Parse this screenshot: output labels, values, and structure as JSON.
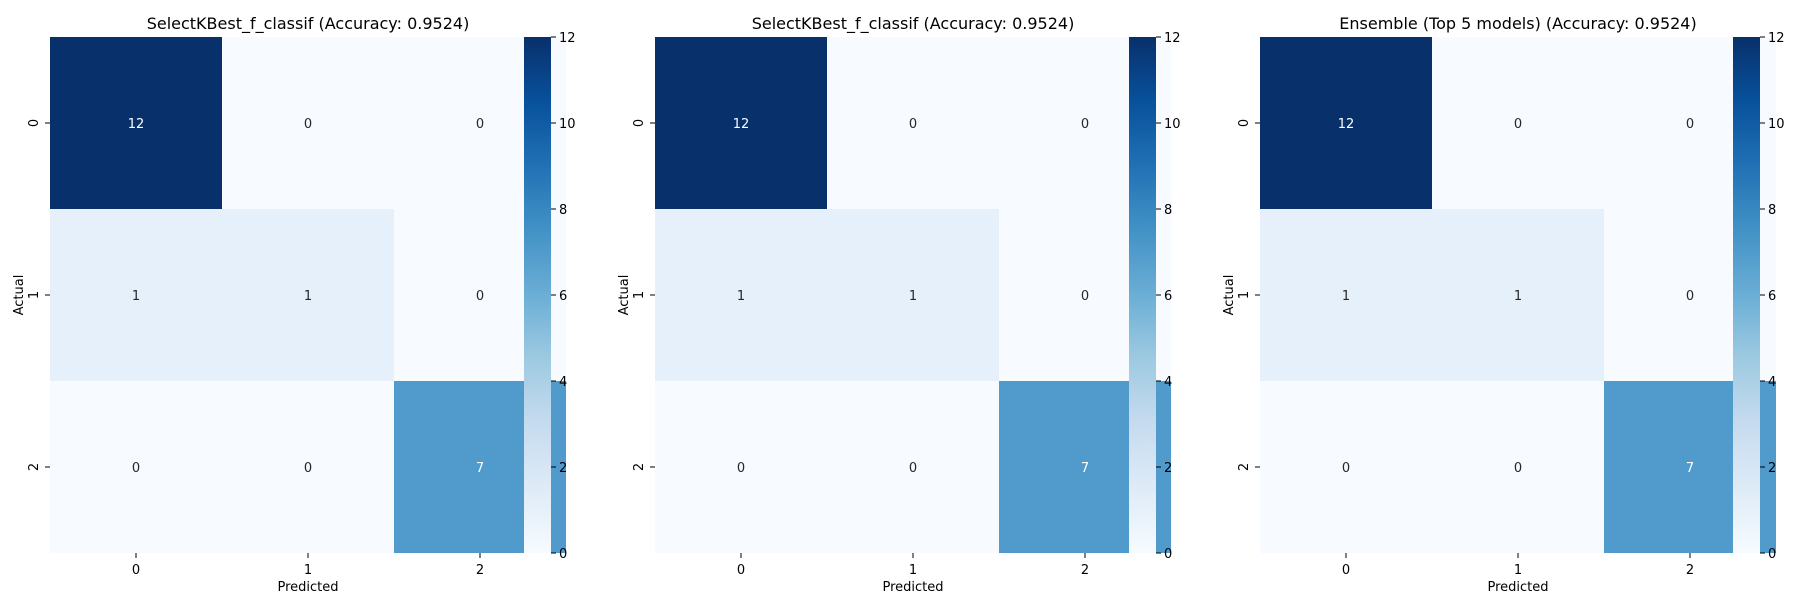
{
  "chart_data": [
    {
      "type": "heatmap",
      "title": "SelectKBest_f_classif (Accuracy: 0.9524)",
      "xlabel": "Predicted",
      "ylabel": "Actual",
      "x_categories": [
        "0",
        "1",
        "2"
      ],
      "y_categories": [
        "0",
        "1",
        "2"
      ],
      "values": [
        [
          12,
          0,
          0
        ],
        [
          1,
          1,
          0
        ],
        [
          0,
          0,
          7
        ]
      ],
      "colorbar": {
        "min": 0,
        "max": 12,
        "ticks": [
          "0",
          "2",
          "4",
          "6",
          "8",
          "10",
          "12"
        ]
      },
      "colormap": "Blues"
    },
    {
      "type": "heatmap",
      "title": "SelectKBest_f_classif (Accuracy: 0.9524)",
      "xlabel": "Predicted",
      "ylabel": "Actual",
      "x_categories": [
        "0",
        "1",
        "2"
      ],
      "y_categories": [
        "0",
        "1",
        "2"
      ],
      "values": [
        [
          12,
          0,
          0
        ],
        [
          1,
          1,
          0
        ],
        [
          0,
          0,
          7
        ]
      ],
      "colorbar": {
        "min": 0,
        "max": 12,
        "ticks": [
          "0",
          "2",
          "4",
          "6",
          "8",
          "10",
          "12"
        ]
      },
      "colormap": "Blues"
    },
    {
      "type": "heatmap",
      "title": "Ensemble (Top 5 models) (Accuracy: 0.9524)",
      "xlabel": "Predicted",
      "ylabel": "Actual",
      "x_categories": [
        "0",
        "1",
        "2"
      ],
      "y_categories": [
        "0",
        "1",
        "2"
      ],
      "values": [
        [
          12,
          0,
          0
        ],
        [
          1,
          1,
          0
        ],
        [
          0,
          0,
          7
        ]
      ],
      "colorbar": {
        "min": 0,
        "max": 12,
        "ticks": [
          "0",
          "2",
          "4",
          "6",
          "8",
          "10",
          "12"
        ]
      },
      "colormap": "Blues"
    }
  ]
}
